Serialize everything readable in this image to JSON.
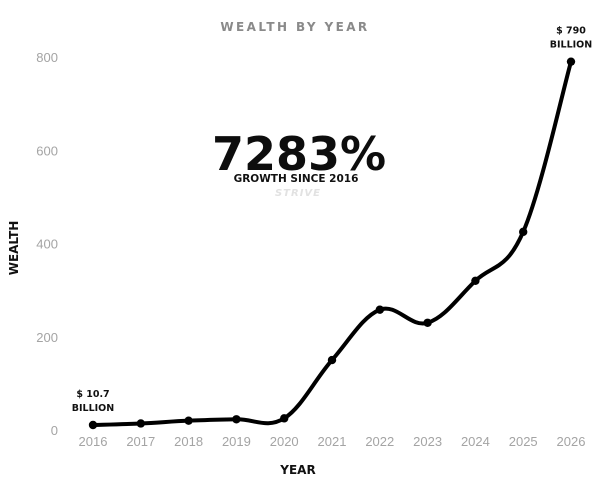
{
  "chart_data": {
    "type": "line",
    "title": "WEALTH BY YEAR",
    "xlabel": "YEAR",
    "ylabel": "WEALTH",
    "x": [
      "2016",
      "2017",
      "2018",
      "2019",
      "2020",
      "2021",
      "2022",
      "2023",
      "2024",
      "2025",
      "2026"
    ],
    "series": [
      {
        "values": [
          10.7,
          14,
          20,
          23,
          25,
          150,
          258,
          230,
          320,
          425,
          790
        ]
      }
    ],
    "ylim": [
      0,
      800
    ],
    "yticks": [
      0,
      200,
      400,
      600,
      800
    ],
    "grid": false,
    "line_color": "#000000",
    "annotations": [
      {
        "x": "2016",
        "lines": [
          "$ 10.7",
          "BILLION"
        ]
      },
      {
        "x": "2026",
        "lines": [
          "$ 790",
          "BILLION"
        ]
      }
    ]
  },
  "headline": {
    "value": "7283%",
    "subtitle": "GROWTH SINCE 2016",
    "watermark": "STRIVE"
  }
}
